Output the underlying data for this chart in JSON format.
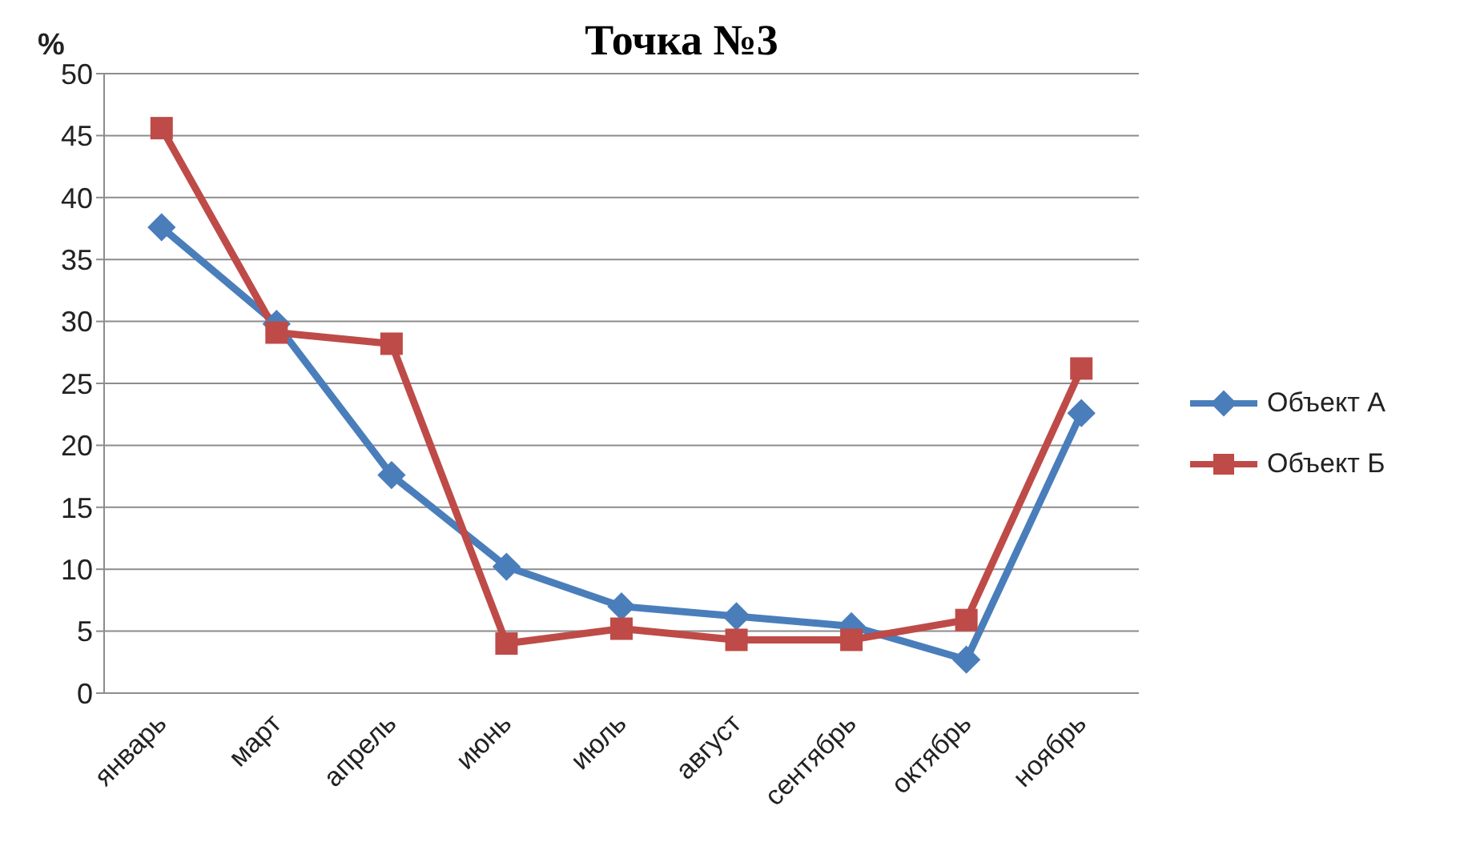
{
  "chart_data": {
    "type": "line",
    "title": "Точка №3",
    "ylabel": "%",
    "categories": [
      "январь",
      "март",
      "апрель",
      "июнь",
      "июль",
      "август",
      "сентябрь",
      "октябрь",
      "ноябрь"
    ],
    "series": [
      {
        "name": "Объект А",
        "color": "#4a7ebb",
        "marker": "diamond",
        "values": [
          37.6,
          29.8,
          17.6,
          10.2,
          7.0,
          6.2,
          5.4,
          2.7,
          22.6
        ]
      },
      {
        "name": "Объект Б",
        "color": "#be4b48",
        "marker": "square",
        "values": [
          45.6,
          29.1,
          28.2,
          4.0,
          5.2,
          4.3,
          4.3,
          5.9,
          26.2
        ]
      }
    ],
    "ylim": [
      0,
      50
    ],
    "yticks": [
      0,
      5,
      10,
      15,
      20,
      25,
      30,
      35,
      40,
      45,
      50
    ],
    "grid": "y",
    "legend": "right"
  }
}
